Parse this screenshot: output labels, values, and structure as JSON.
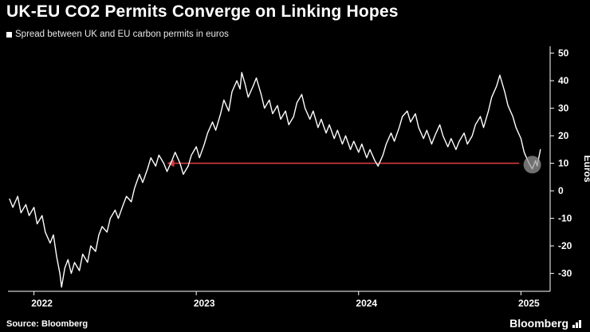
{
  "header": {
    "title": "UK-EU CO2 Permits Converge on Linking Hopes",
    "legend": "Spread between UK and EU carbon permits in euros"
  },
  "footer": {
    "source": "Source: Bloomberg",
    "brand": "Bloomberg"
  },
  "colors": {
    "background": "#000000",
    "text": "#ffffff",
    "line": "#ffffff",
    "arrow": "#d23b3e",
    "endpoint": "#9b9b9b"
  },
  "chart_data": {
    "type": "line",
    "title": "UK-EU CO2 Permits Converge on Linking Hopes",
    "subtitle": "Spread between UK and EU carbon permits in euros",
    "xlabel": "",
    "ylabel": "Euros",
    "ylim": [
      -36.5,
      52.5
    ],
    "xlim": [
      2021.84,
      2025.18
    ],
    "y_ticks": [
      50,
      40,
      30,
      20,
      10,
      0,
      -10,
      -20,
      -30
    ],
    "x_ticks": [
      2022,
      2023,
      2024,
      2025
    ],
    "grid": false,
    "legend_position": "top-left",
    "line_color": "#ffffff",
    "annotation": {
      "type": "arrow-left",
      "y": 10,
      "x_head": 2022.82,
      "x_tail": 2024.99,
      "color": "#d23b3e"
    },
    "endpoint_marker": {
      "x": 2025.07,
      "y": 9.5,
      "radius_px": 11,
      "color": "#9b9b9b"
    },
    "series": [
      {
        "name": "Spread between UK and EU carbon permits in euros",
        "points": [
          [
            2021.85,
            -3
          ],
          [
            2021.87,
            -6
          ],
          [
            2021.9,
            -2
          ],
          [
            2021.92,
            -8
          ],
          [
            2021.95,
            -5
          ],
          [
            2021.97,
            -9
          ],
          [
            2022.0,
            -6
          ],
          [
            2022.02,
            -12
          ],
          [
            2022.05,
            -9
          ],
          [
            2022.07,
            -15
          ],
          [
            2022.1,
            -19
          ],
          [
            2022.12,
            -16
          ],
          [
            2022.14,
            -24
          ],
          [
            2022.16,
            -30
          ],
          [
            2022.17,
            -35
          ],
          [
            2022.19,
            -28
          ],
          [
            2022.21,
            -25
          ],
          [
            2022.23,
            -30
          ],
          [
            2022.25,
            -26
          ],
          [
            2022.28,
            -29
          ],
          [
            2022.3,
            -23
          ],
          [
            2022.33,
            -26
          ],
          [
            2022.35,
            -20
          ],
          [
            2022.38,
            -22
          ],
          [
            2022.4,
            -16
          ],
          [
            2022.42,
            -13
          ],
          [
            2022.45,
            -15
          ],
          [
            2022.47,
            -10
          ],
          [
            2022.5,
            -7
          ],
          [
            2022.52,
            -10
          ],
          [
            2022.55,
            -5
          ],
          [
            2022.57,
            -2
          ],
          [
            2022.6,
            -4
          ],
          [
            2022.62,
            1
          ],
          [
            2022.65,
            6
          ],
          [
            2022.67,
            3
          ],
          [
            2022.7,
            8
          ],
          [
            2022.72,
            12
          ],
          [
            2022.75,
            9
          ],
          [
            2022.77,
            13
          ],
          [
            2022.8,
            10
          ],
          [
            2022.82,
            7
          ],
          [
            2022.85,
            11
          ],
          [
            2022.87,
            14
          ],
          [
            2022.9,
            10
          ],
          [
            2022.92,
            6
          ],
          [
            2022.95,
            9
          ],
          [
            2022.97,
            13
          ],
          [
            2023.0,
            16
          ],
          [
            2023.02,
            12
          ],
          [
            2023.05,
            17
          ],
          [
            2023.07,
            21
          ],
          [
            2023.1,
            25
          ],
          [
            2023.12,
            22
          ],
          [
            2023.15,
            28
          ],
          [
            2023.17,
            33
          ],
          [
            2023.2,
            29
          ],
          [
            2023.22,
            36
          ],
          [
            2023.25,
            40
          ],
          [
            2023.27,
            37
          ],
          [
            2023.28,
            43
          ],
          [
            2023.3,
            39
          ],
          [
            2023.32,
            34
          ],
          [
            2023.35,
            38
          ],
          [
            2023.37,
            41
          ],
          [
            2023.4,
            35
          ],
          [
            2023.42,
            30
          ],
          [
            2023.45,
            33
          ],
          [
            2023.47,
            28
          ],
          [
            2023.5,
            31
          ],
          [
            2023.52,
            26
          ],
          [
            2023.55,
            29
          ],
          [
            2023.57,
            24
          ],
          [
            2023.6,
            27
          ],
          [
            2023.62,
            32
          ],
          [
            2023.65,
            35
          ],
          [
            2023.67,
            30
          ],
          [
            2023.7,
            26
          ],
          [
            2023.72,
            29
          ],
          [
            2023.75,
            23
          ],
          [
            2023.77,
            26
          ],
          [
            2023.8,
            21
          ],
          [
            2023.82,
            24
          ],
          [
            2023.85,
            19
          ],
          [
            2023.87,
            22
          ],
          [
            2023.9,
            17
          ],
          [
            2023.92,
            20
          ],
          [
            2023.95,
            15
          ],
          [
            2023.97,
            18
          ],
          [
            2024.0,
            14
          ],
          [
            2024.02,
            17
          ],
          [
            2024.05,
            12
          ],
          [
            2024.07,
            15
          ],
          [
            2024.1,
            11
          ],
          [
            2024.12,
            9
          ],
          [
            2024.15,
            13
          ],
          [
            2024.17,
            17
          ],
          [
            2024.2,
            21
          ],
          [
            2024.22,
            18
          ],
          [
            2024.25,
            23
          ],
          [
            2024.27,
            27
          ],
          [
            2024.3,
            29
          ],
          [
            2024.32,
            25
          ],
          [
            2024.35,
            28
          ],
          [
            2024.37,
            23
          ],
          [
            2024.4,
            19
          ],
          [
            2024.42,
            22
          ],
          [
            2024.45,
            17
          ],
          [
            2024.47,
            20
          ],
          [
            2024.5,
            24
          ],
          [
            2024.52,
            20
          ],
          [
            2024.55,
            16
          ],
          [
            2024.57,
            19
          ],
          [
            2024.6,
            15
          ],
          [
            2024.62,
            18
          ],
          [
            2024.65,
            21
          ],
          [
            2024.67,
            17
          ],
          [
            2024.7,
            20
          ],
          [
            2024.72,
            24
          ],
          [
            2024.75,
            27
          ],
          [
            2024.77,
            23
          ],
          [
            2024.8,
            29
          ],
          [
            2024.82,
            34
          ],
          [
            2024.85,
            38
          ],
          [
            2024.87,
            42
          ],
          [
            2024.9,
            36
          ],
          [
            2024.92,
            31
          ],
          [
            2024.95,
            27
          ],
          [
            2024.97,
            23
          ],
          [
            2025.0,
            19
          ],
          [
            2025.02,
            14
          ],
          [
            2025.05,
            10
          ],
          [
            2025.07,
            8
          ],
          [
            2025.09,
            11
          ],
          [
            2025.1,
            9
          ],
          [
            2025.12,
            15
          ]
        ]
      }
    ]
  }
}
